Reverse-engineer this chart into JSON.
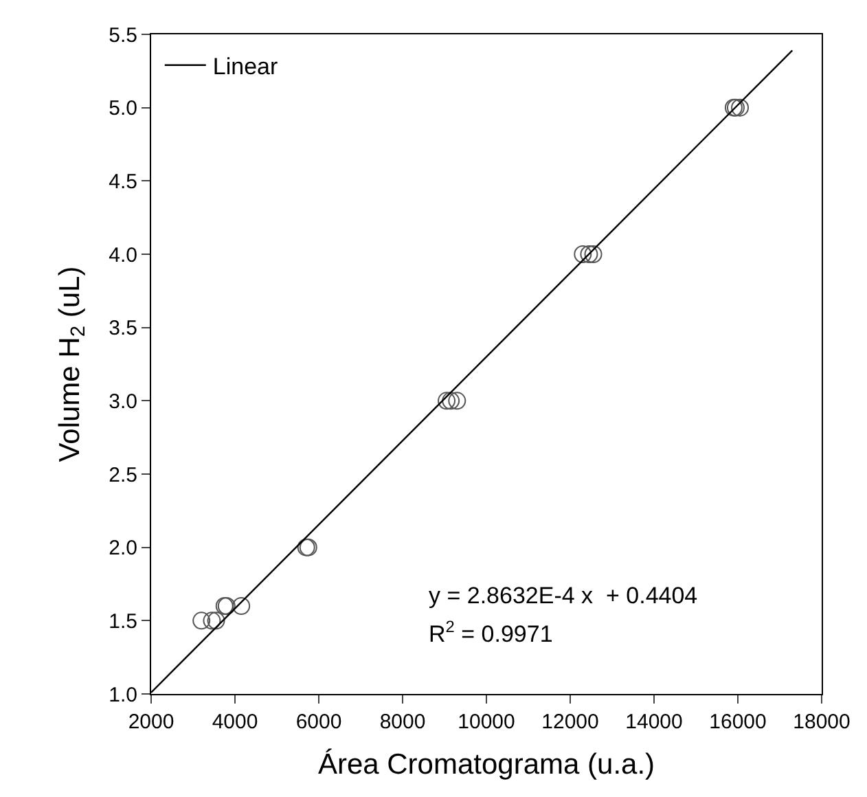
{
  "chart_data": {
    "type": "scatter",
    "xlabel": "Área Cromatograma (u.a.)",
    "ylabel": "Volume H$_{2}$ (uL)",
    "xlim": [
      2000,
      18000
    ],
    "xticks": [
      2000,
      4000,
      6000,
      8000,
      10000,
      12000,
      14000,
      16000,
      18000
    ],
    "ylim": [
      1.0,
      5.5
    ],
    "yticks": [
      {
        "value": 1.0,
        "label": "1.0"
      },
      {
        "value": 1.5,
        "label": "1.5"
      },
      {
        "value": 2.0,
        "label": "2.0"
      },
      {
        "value": 2.5,
        "label": "2.5"
      },
      {
        "value": 3.0,
        "label": "3.0"
      },
      {
        "value": 3.5,
        "label": "3.5"
      },
      {
        "value": 4.0,
        "label": "4.0"
      },
      {
        "value": 4.5,
        "label": "4.5"
      },
      {
        "value": 5.0,
        "label": "5.0"
      },
      {
        "value": 5.5,
        "label": "5.5"
      }
    ],
    "legend": "top left",
    "series": [
      {
        "marker": "circle",
        "color": "#555555",
        "x": [
          3200,
          3450,
          3550,
          3750,
          3800,
          4150,
          5700,
          5750,
          9050,
          9150,
          9300,
          12300,
          12450,
          12550,
          15900,
          15950,
          16050
        ],
        "values": [
          1.5,
          1.5,
          1.5,
          1.6,
          1.6,
          1.6,
          2.0,
          2.0,
          3.0,
          3.0,
          3.0,
          4.0,
          4.0,
          4.0,
          5.0,
          5.0,
          5.0
        ]
      },
      {
        "type": "line",
        "name": "Linear",
        "color": "#000000",
        "x": [
          2000,
          17300
        ],
        "values": [
          1.01,
          5.39
        ]
      }
    ],
    "annotations": [
      "y = 2.8632E-4 x  + 0.4404",
      "R$^{2}$ = 0.9971"
    ]
  }
}
